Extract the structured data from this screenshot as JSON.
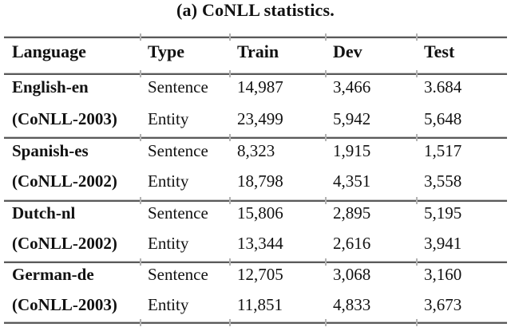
{
  "title": "(a) CoNLL statistics.",
  "table": {
    "columns": [
      "Language",
      "Type",
      "Train",
      "Dev",
      "Test"
    ],
    "groups": [
      {
        "language": "English-en",
        "dataset": "(CoNLL-2003)",
        "rows": [
          {
            "type": "Sentence",
            "train": "14,987",
            "dev": "3,466",
            "test": "3.684"
          },
          {
            "type": "Entity",
            "train": "23,499",
            "dev": "5,942",
            "test": "5,648"
          }
        ]
      },
      {
        "language": "Spanish-es",
        "dataset": "(CoNLL-2002)",
        "rows": [
          {
            "type": "Sentence",
            "train": "8,323",
            "dev": "1,915",
            "test": "1,517"
          },
          {
            "type": "Entity",
            "train": "18,798",
            "dev": "4,351",
            "test": "3,558"
          }
        ]
      },
      {
        "language": "Dutch-nl",
        "dataset": "(CoNLL-2002)",
        "rows": [
          {
            "type": "Sentence",
            "train": "15,806",
            "dev": "2,895",
            "test": "5,195"
          },
          {
            "type": "Entity",
            "train": "13,344",
            "dev": "2,616",
            "test": "3,941"
          }
        ]
      },
      {
        "language": "German-de",
        "dataset": "(CoNLL-2003)",
        "rows": [
          {
            "type": "Sentence",
            "train": "12,705",
            "dev": "3,068",
            "test": "3,160"
          },
          {
            "type": "Entity",
            "train": "11,851",
            "dev": "4,833",
            "test": "3,673"
          }
        ]
      }
    ]
  }
}
